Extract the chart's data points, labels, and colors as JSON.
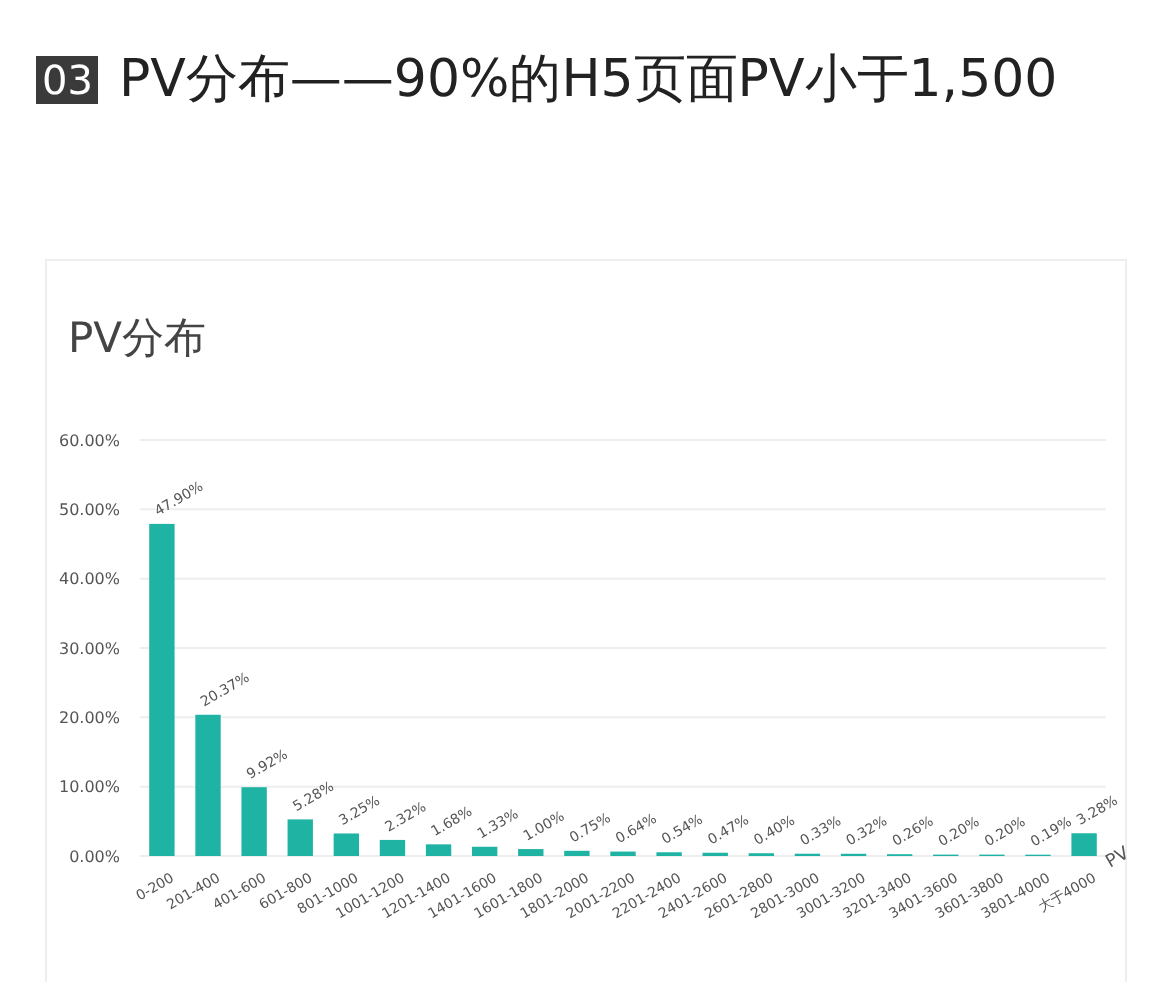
{
  "chart_data": {
    "type": "bar",
    "title": "PV分布——90%的H5页面PV小于1,500",
    "subtitle": "PV分布",
    "annotations": [
      "03"
    ],
    "xlabel": "PV",
    "categories": [
      "0-200",
      "201-400",
      "401-600",
      "601-800",
      "801-1000",
      "1001-1200",
      "1201-1400",
      "1401-1600",
      "1601-1800",
      "1801-2000",
      "2001-2200",
      "2201-2400",
      "2401-2600",
      "2601-2800",
      "2801-3000",
      "3001-3200",
      "3201-3400",
      "3401-3600",
      "3601-3800",
      "3801-4000",
      "大于4000"
    ],
    "values": [
      47.9,
      20.37,
      9.92,
      5.28,
      3.25,
      2.32,
      1.68,
      1.33,
      1.0,
      0.75,
      0.64,
      0.54,
      0.47,
      0.4,
      0.33,
      0.32,
      0.26,
      0.2,
      0.2,
      0.19,
      3.28
    ],
    "value_labels": [
      "47.90%",
      "20.37%",
      "9.92%",
      "5.28%",
      "3.25%",
      "2.32%",
      "1.68%",
      "1.33%",
      "1.00%",
      "0.75%",
      "0.64%",
      "0.54%",
      "0.47%",
      "0.40%",
      "0.33%",
      "0.32%",
      "0.26%",
      "0.20%",
      "0.20%",
      "0.19%",
      "3.28%"
    ],
    "color": "#1fb3a3",
    "ylim": [
      0,
      60
    ],
    "yticks": [
      {
        "value": 0,
        "label": "0.00%"
      },
      {
        "value": 10,
        "label": "10.00%"
      },
      {
        "value": 20,
        "label": "20.00%"
      },
      {
        "value": 30,
        "label": "30.00%"
      },
      {
        "value": 40,
        "label": "40.00%"
      },
      {
        "value": 50,
        "label": "50.00%"
      },
      {
        "value": 60,
        "label": "60.00%"
      }
    ],
    "grid": "y"
  }
}
